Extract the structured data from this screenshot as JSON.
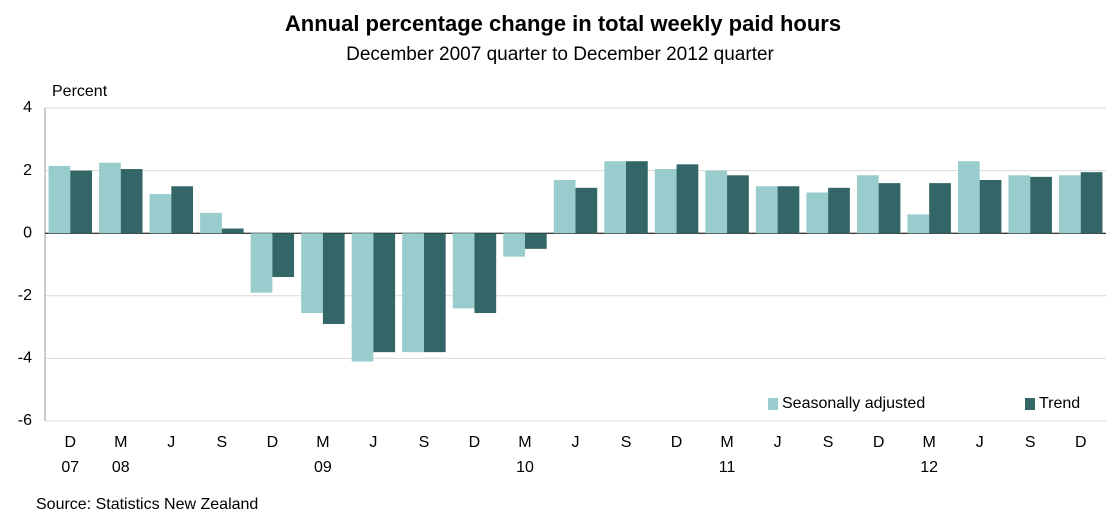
{
  "chart_data": {
    "type": "bar",
    "title": "Annual  percentage change in total weekly paid hours",
    "subtitle": "December  2007  quarter  to December  2012  quarter",
    "y_label": "Percent",
    "source": "Source: Statistics New Zealand",
    "categories": [
      "D",
      "M",
      "J",
      "S",
      "D",
      "M",
      "J",
      "S",
      "D",
      "M",
      "J",
      "S",
      "D",
      "M",
      "J",
      "S",
      "D",
      "M",
      "J",
      "S",
      "D"
    ],
    "years": [
      "07",
      "08",
      null,
      null,
      null,
      "09",
      null,
      null,
      null,
      "10",
      null,
      null,
      null,
      "11",
      null,
      null,
      null,
      "12",
      null,
      null,
      null
    ],
    "series": [
      {
        "name": "Seasonally adjusted",
        "color": "#99cccc",
        "values": [
          2.15,
          2.25,
          1.25,
          0.65,
          -1.9,
          -2.55,
          -4.1,
          -3.8,
          -2.4,
          -0.75,
          1.7,
          2.3,
          2.05,
          2.0,
          1.5,
          1.3,
          1.85,
          0.6,
          2.3,
          1.85,
          1.85
        ]
      },
      {
        "name": "Trend",
        "color": "#336666",
        "values": [
          2.0,
          2.05,
          1.5,
          0.15,
          -1.4,
          -2.9,
          -3.8,
          -3.8,
          -2.55,
          -0.5,
          1.45,
          2.3,
          2.2,
          1.85,
          1.5,
          1.45,
          1.6,
          1.6,
          1.7,
          1.8,
          1.95
        ]
      }
    ],
    "ylim": [
      -6,
      4
    ],
    "yticks": [
      -6,
      -4,
      -2,
      0,
      2,
      4
    ],
    "grid": true,
    "legend": "lower right"
  }
}
